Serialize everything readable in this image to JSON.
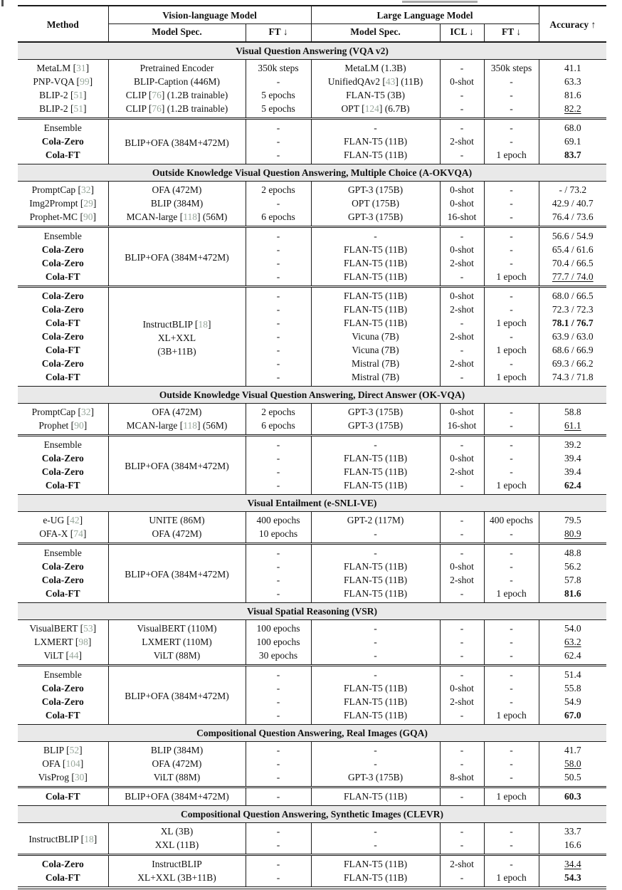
{
  "colors": {
    "citation": "#98a79b",
    "section_band": "#e9e9e9",
    "rule": "#1a1a1a"
  },
  "table": {
    "header": {
      "method": "Method",
      "vlm_group": "Vision-language Model",
      "llm_group": "Large Language Model",
      "accuracy": "Accuracy ↑",
      "vlm_spec": "Model Spec.",
      "vlm_ft": "FT ↓",
      "llm_spec": "Model Spec.",
      "icl": "ICL ↓",
      "llm_ft": "FT ↓"
    },
    "sections": [
      {
        "title": "Visual Question Answering (VQA v2)",
        "blocks": [
          {
            "rows": [
              {
                "cells": [
                  "MetaLM [31]",
                  "Pretrained Encoder",
                  "350k steps",
                  "MetaLM (1.3B)",
                  "-",
                  "350k steps",
                  "41.1"
                ],
                "bold": false,
                "acc": ""
              },
              {
                "cells": [
                  "PNP-VQA [99]",
                  "BLIP-Caption (446M)",
                  "-",
                  "UnifiedQAv2 [43] (11B)",
                  "0-shot",
                  "-",
                  "63.3"
                ],
                "bold": false,
                "acc": ""
              },
              {
                "cells": [
                  "BLIP-2 [51]",
                  "CLIP [76] (1.2B trainable)",
                  "5 epochs",
                  "FLAN-T5 (3B)",
                  "-",
                  "-",
                  "81.6"
                ],
                "bold": false,
                "acc": ""
              },
              {
                "cells": [
                  "BLIP-2 [51]",
                  "CLIP [76] (1.2B trainable)",
                  "5 epochs",
                  "OPT [124] (6.7B)",
                  "-",
                  "-",
                  "82.2"
                ],
                "bold": false,
                "acc": "u"
              }
            ]
          },
          {
            "merge": {
              "col": 1,
              "lines": [
                "BLIP+OFA (384M+472M)"
              ]
            },
            "rows": [
              {
                "cells": [
                  "Ensemble",
                  null,
                  "-",
                  "-",
                  "-",
                  "-",
                  "68.0"
                ],
                "bold": false,
                "acc": ""
              },
              {
                "cells": [
                  "Cola-Zero",
                  null,
                  "-",
                  "FLAN-T5 (11B)",
                  "2-shot",
                  "-",
                  "69.1"
                ],
                "bold": true,
                "acc": ""
              },
              {
                "cells": [
                  "Cola-FT",
                  null,
                  "-",
                  "FLAN-T5 (11B)",
                  "-",
                  "1 epoch",
                  "83.7"
                ],
                "bold": true,
                "acc": "b"
              }
            ]
          }
        ]
      },
      {
        "title": "Outside Knowledge Visual Question Answering, Multiple Choice (A-OKVQA)",
        "blocks": [
          {
            "rows": [
              {
                "cells": [
                  "PromptCap [32]",
                  "OFA (472M)",
                  "2 epochs",
                  "GPT-3 (175B)",
                  "0-shot",
                  "-",
                  "- / 73.2"
                ],
                "bold": false,
                "acc": ""
              },
              {
                "cells": [
                  "Img2Prompt [29]",
                  "BLIP (384M)",
                  "-",
                  "OPT (175B)",
                  "0-shot",
                  "-",
                  "42.9 / 40.7"
                ],
                "bold": false,
                "acc": ""
              },
              {
                "cells": [
                  "Prophet-MC [90]",
                  "MCAN-large [118] (56M)",
                  "6 epochs",
                  "GPT-3 (175B)",
                  "16-shot",
                  "-",
                  "76.4 / 73.6"
                ],
                "bold": false,
                "acc": ""
              }
            ]
          },
          {
            "merge": {
              "col": 1,
              "lines": [
                "BLIP+OFA (384M+472M)"
              ]
            },
            "rows": [
              {
                "cells": [
                  "Ensemble",
                  null,
                  "-",
                  "-",
                  "-",
                  "-",
                  "56.6 / 54.9"
                ],
                "bold": false,
                "acc": ""
              },
              {
                "cells": [
                  "Cola-Zero",
                  null,
                  "-",
                  "FLAN-T5 (11B)",
                  "0-shot",
                  "-",
                  "65.4 / 61.6"
                ],
                "bold": true,
                "acc": ""
              },
              {
                "cells": [
                  "Cola-Zero",
                  null,
                  "-",
                  "FLAN-T5 (11B)",
                  "2-shot",
                  "-",
                  "70.4 / 66.5"
                ],
                "bold": true,
                "acc": ""
              },
              {
                "cells": [
                  "Cola-FT",
                  null,
                  "-",
                  "FLAN-T5 (11B)",
                  "-",
                  "1 epoch",
                  "77.7 / 74.0"
                ],
                "bold": true,
                "acc": "u"
              }
            ]
          },
          {
            "merge": {
              "col": 1,
              "lines": [
                "InstructBLIP [18]",
                "XL+XXL",
                "(3B+11B)"
              ]
            },
            "rows": [
              {
                "cells": [
                  "Cola-Zero",
                  null,
                  "-",
                  "FLAN-T5 (11B)",
                  "0-shot",
                  "-",
                  "68.0 / 66.5"
                ],
                "bold": true,
                "acc": ""
              },
              {
                "cells": [
                  "Cola-Zero",
                  null,
                  "-",
                  "FLAN-T5 (11B)",
                  "2-shot",
                  "-",
                  "72.3 / 72.3"
                ],
                "bold": true,
                "acc": ""
              },
              {
                "cells": [
                  "Cola-FT",
                  null,
                  "-",
                  "FLAN-T5 (11B)",
                  "-",
                  "1 epoch",
                  "78.1 / 76.7"
                ],
                "bold": true,
                "acc": "b"
              },
              {
                "cells": [
                  "Cola-Zero",
                  null,
                  "-",
                  "Vicuna (7B)",
                  "2-shot",
                  "-",
                  "63.9 / 63.0"
                ],
                "bold": true,
                "acc": ""
              },
              {
                "cells": [
                  "Cola-FT",
                  null,
                  "-",
                  "Vicuna (7B)",
                  "-",
                  "1 epoch",
                  "68.6 / 66.9"
                ],
                "bold": true,
                "acc": ""
              },
              {
                "cells": [
                  "Cola-Zero",
                  null,
                  "-",
                  "Mistral (7B)",
                  "2-shot",
                  "-",
                  "69.3 / 66.2"
                ],
                "bold": true,
                "acc": ""
              },
              {
                "cells": [
                  "Cola-FT",
                  null,
                  "-",
                  "Mistral (7B)",
                  "-",
                  "1 epoch",
                  "74.3 / 71.8"
                ],
                "bold": true,
                "acc": ""
              }
            ]
          }
        ]
      },
      {
        "title": "Outside Knowledge Visual Question Answering, Direct Answer (OK-VQA)",
        "blocks": [
          {
            "rows": [
              {
                "cells": [
                  "PromptCap [32]",
                  "OFA (472M)",
                  "2 epochs",
                  "GPT-3 (175B)",
                  "0-shot",
                  "-",
                  "58.8"
                ],
                "bold": false,
                "acc": ""
              },
              {
                "cells": [
                  "Prophet [90]",
                  "MCAN-large [118] (56M)",
                  "6 epochs",
                  "GPT-3 (175B)",
                  "16-shot",
                  "-",
                  "61.1"
                ],
                "bold": false,
                "acc": "u"
              }
            ]
          },
          {
            "merge": {
              "col": 1,
              "lines": [
                "BLIP+OFA (384M+472M)"
              ]
            },
            "rows": [
              {
                "cells": [
                  "Ensemble",
                  null,
                  "-",
                  "-",
                  "-",
                  "-",
                  "39.2"
                ],
                "bold": false,
                "acc": ""
              },
              {
                "cells": [
                  "Cola-Zero",
                  null,
                  "-",
                  "FLAN-T5 (11B)",
                  "0-shot",
                  "-",
                  "39.4"
                ],
                "bold": true,
                "acc": ""
              },
              {
                "cells": [
                  "Cola-Zero",
                  null,
                  "-",
                  "FLAN-T5 (11B)",
                  "2-shot",
                  "-",
                  "39.4"
                ],
                "bold": true,
                "acc": ""
              },
              {
                "cells": [
                  "Cola-FT",
                  null,
                  "-",
                  "FLAN-T5 (11B)",
                  "-",
                  "1 epoch",
                  "62.4"
                ],
                "bold": true,
                "acc": "b"
              }
            ]
          }
        ]
      },
      {
        "title": "Visual Entailment (e-SNLI-VE)",
        "blocks": [
          {
            "rows": [
              {
                "cells": [
                  "e-UG [42]",
                  "UNITE (86M)",
                  "400 epochs",
                  "GPT-2 (117M)",
                  "-",
                  "400 epochs",
                  "79.5"
                ],
                "bold": false,
                "acc": ""
              },
              {
                "cells": [
                  "OFA-X [74]",
                  "OFA (472M)",
                  "10 epochs",
                  "-",
                  "-",
                  "-",
                  "80.9"
                ],
                "bold": false,
                "acc": "u"
              }
            ]
          },
          {
            "merge": {
              "col": 1,
              "lines": [
                "BLIP+OFA (384M+472M)"
              ]
            },
            "rows": [
              {
                "cells": [
                  "Ensemble",
                  null,
                  "-",
                  "-",
                  "-",
                  "-",
                  "48.8"
                ],
                "bold": false,
                "acc": ""
              },
              {
                "cells": [
                  "Cola-Zero",
                  null,
                  "-",
                  "FLAN-T5 (11B)",
                  "0-shot",
                  "-",
                  "56.2"
                ],
                "bold": true,
                "acc": ""
              },
              {
                "cells": [
                  "Cola-Zero",
                  null,
                  "-",
                  "FLAN-T5 (11B)",
                  "2-shot",
                  "-",
                  "57.8"
                ],
                "bold": true,
                "acc": ""
              },
              {
                "cells": [
                  "Cola-FT",
                  null,
                  "-",
                  "FLAN-T5 (11B)",
                  "-",
                  "1 epoch",
                  "81.6"
                ],
                "bold": true,
                "acc": "b"
              }
            ]
          }
        ]
      },
      {
        "title": "Visual Spatial Reasoning (VSR)",
        "blocks": [
          {
            "rows": [
              {
                "cells": [
                  "VisualBERT [53]",
                  "VisualBERT (110M)",
                  "100 epochs",
                  "-",
                  "-",
                  "-",
                  "54.0"
                ],
                "bold": false,
                "acc": ""
              },
              {
                "cells": [
                  "LXMERT [98]",
                  "LXMERT (110M)",
                  "100 epochs",
                  "-",
                  "-",
                  "-",
                  "63.2"
                ],
                "bold": false,
                "acc": "u"
              },
              {
                "cells": [
                  "ViLT [44]",
                  "ViLT (88M)",
                  "30 epochs",
                  "-",
                  "-",
                  "-",
                  "62.4"
                ],
                "bold": false,
                "acc": ""
              }
            ]
          },
          {
            "merge": {
              "col": 1,
              "lines": [
                "BLIP+OFA (384M+472M)"
              ]
            },
            "rows": [
              {
                "cells": [
                  "Ensemble",
                  null,
                  "-",
                  "-",
                  "-",
                  "-",
                  "51.4"
                ],
                "bold": false,
                "acc": ""
              },
              {
                "cells": [
                  "Cola-Zero",
                  null,
                  "-",
                  "FLAN-T5 (11B)",
                  "0-shot",
                  "-",
                  "55.8"
                ],
                "bold": true,
                "acc": ""
              },
              {
                "cells": [
                  "Cola-Zero",
                  null,
                  "-",
                  "FLAN-T5 (11B)",
                  "2-shot",
                  "-",
                  "54.9"
                ],
                "bold": true,
                "acc": ""
              },
              {
                "cells": [
                  "Cola-FT",
                  null,
                  "-",
                  "FLAN-T5 (11B)",
                  "-",
                  "1 epoch",
                  "67.0"
                ],
                "bold": true,
                "acc": "b"
              }
            ]
          }
        ]
      },
      {
        "title": "Compositional Question Answering, Real Images (GQA)",
        "blocks": [
          {
            "rows": [
              {
                "cells": [
                  "BLIP [52]",
                  "BLIP (384M)",
                  "-",
                  "-",
                  "-",
                  "-",
                  "41.7"
                ],
                "bold": false,
                "acc": ""
              },
              {
                "cells": [
                  "OFA [104]",
                  "OFA (472M)",
                  "-",
                  "-",
                  "-",
                  "-",
                  "58.0"
                ],
                "bold": false,
                "acc": "u"
              },
              {
                "cells": [
                  "VisProg [30]",
                  "ViLT (88M)",
                  "-",
                  "GPT-3 (175B)",
                  "8-shot",
                  "-",
                  "50.5"
                ],
                "bold": false,
                "acc": ""
              }
            ]
          },
          {
            "rows": [
              {
                "cells": [
                  "Cola-FT",
                  "BLIP+OFA (384M+472M)",
                  "-",
                  "FLAN-T5 (11B)",
                  "-",
                  "1 epoch",
                  "60.3"
                ],
                "bold": true,
                "acc": "b"
              }
            ]
          }
        ]
      },
      {
        "title": "Compositional Question Answering, Synthetic Images (CLEVR)",
        "blocks": [
          {
            "merge": {
              "col": 0,
              "lines": [
                "InstructBLIP [18]"
              ]
            },
            "rows": [
              {
                "cells": [
                  null,
                  "XL (3B)",
                  "-",
                  "-",
                  "-",
                  "-",
                  "33.7"
                ],
                "bold": false,
                "acc": ""
              },
              {
                "cells": [
                  null,
                  "XXL (11B)",
                  "-",
                  "-",
                  "-",
                  "-",
                  "16.6"
                ],
                "bold": false,
                "acc": ""
              }
            ]
          },
          {
            "rows": [
              {
                "cells": [
                  "Cola-Zero",
                  "InstructBLIP",
                  "-",
                  "FLAN-T5 (11B)",
                  "2-shot",
                  "-",
                  "34.4"
                ],
                "bold": true,
                "acc": "u"
              },
              {
                "cells": [
                  "Cola-FT",
                  "XL+XXL (3B+11B)",
                  "-",
                  "FLAN-T5 (11B)",
                  "-",
                  "1 epoch",
                  "54.3"
                ],
                "bold": true,
                "acc": "b"
              }
            ]
          }
        ]
      }
    ]
  }
}
